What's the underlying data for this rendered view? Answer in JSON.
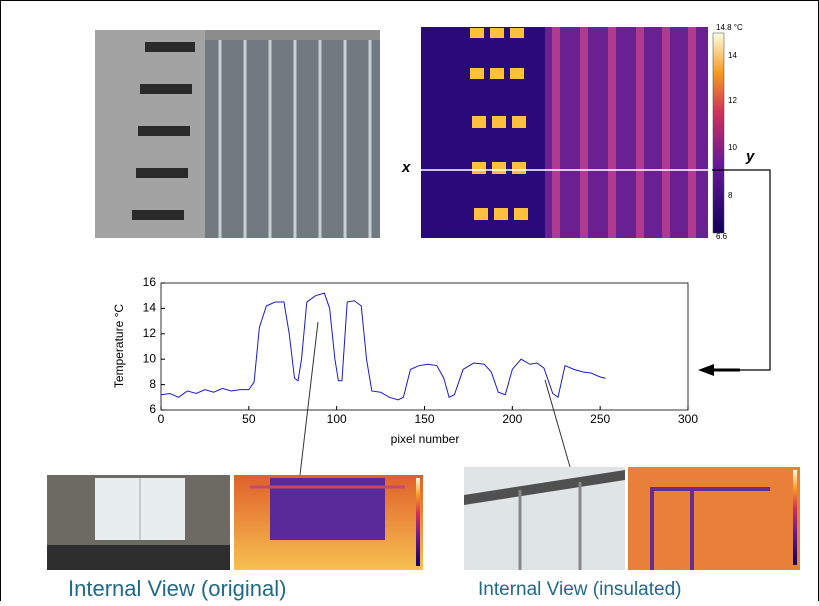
{
  "chart_data": {
    "type": "line",
    "ylabel": "Temperature °C",
    "xlabel": "pixel number",
    "x": [
      0,
      5,
      10,
      15,
      20,
      25,
      30,
      35,
      40,
      45,
      50,
      53,
      56,
      60,
      65,
      70,
      73,
      76,
      78,
      80,
      83,
      88,
      93,
      96,
      99,
      101,
      103,
      106,
      110,
      114,
      117,
      120,
      125,
      130,
      135,
      138,
      142,
      147,
      152,
      157,
      161,
      164,
      167,
      172,
      178,
      184,
      188,
      192,
      196,
      200,
      205,
      210,
      214,
      218,
      223,
      226,
      230,
      235,
      240,
      245,
      250,
      253
    ],
    "series": [
      {
        "color": "#1a1acc",
        "values": [
          7.2,
          7.3,
          7.0,
          7.5,
          7.3,
          7.6,
          7.4,
          7.7,
          7.5,
          7.6,
          7.6,
          8.2,
          12.5,
          14.2,
          14.5,
          14.5,
          12.0,
          8.5,
          8.3,
          10.0,
          14.5,
          15.0,
          15.2,
          14.0,
          10.0,
          8.3,
          8.3,
          14.5,
          14.6,
          14.2,
          10.0,
          7.5,
          7.4,
          7.0,
          6.8,
          7.0,
          9.2,
          9.5,
          9.6,
          9.5,
          8.5,
          7.0,
          7.2,
          9.2,
          9.7,
          9.6,
          9.0,
          7.4,
          7.2,
          9.2,
          10.0,
          9.6,
          9.7,
          9.3,
          7.3,
          7.0,
          9.5,
          9.2,
          9.0,
          8.9,
          8.6,
          8.5
        ]
      }
    ],
    "xlim": [
      0,
      300
    ],
    "xticks": [
      0,
      50,
      100,
      150,
      200,
      250,
      300
    ],
    "ylim": [
      6,
      16
    ],
    "yticks": [
      6,
      8,
      10,
      12,
      14,
      16
    ]
  },
  "figure": {
    "profile_start": "x",
    "profile_end": "y",
    "colorbar": {
      "top": "14.8 °C",
      "ticks": [
        "14",
        "12",
        "10",
        "8"
      ],
      "bottom": "6.6"
    },
    "captions": [
      "Internal View (original)",
      "Internal View (insulated)"
    ]
  }
}
